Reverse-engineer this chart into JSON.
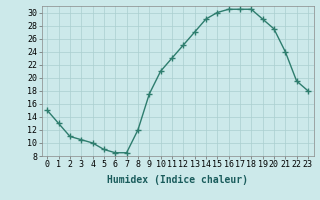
{
  "x": [
    0,
    1,
    2,
    3,
    4,
    5,
    6,
    7,
    8,
    9,
    10,
    11,
    12,
    13,
    14,
    15,
    16,
    17,
    18,
    19,
    20,
    21,
    22,
    23
  ],
  "y": [
    15,
    13,
    11,
    10.5,
    10,
    9,
    8.5,
    8.5,
    12,
    17.5,
    21,
    23,
    25,
    27,
    29,
    30,
    30.5,
    30.5,
    30.5,
    29,
    27.5,
    24,
    19.5,
    18
  ],
  "line_color": "#2e7d6e",
  "marker": "+",
  "marker_size": 4,
  "xlabel": "Humidex (Indice chaleur)",
  "bg_color": "#cce9ea",
  "grid_color": "#aacfcf",
  "xlim": [
    -0.5,
    23.5
  ],
  "ylim": [
    8,
    31
  ],
  "yticks": [
    8,
    10,
    12,
    14,
    16,
    18,
    20,
    22,
    24,
    26,
    28,
    30
  ],
  "xticks": [
    0,
    1,
    2,
    3,
    4,
    5,
    6,
    7,
    8,
    9,
    10,
    11,
    12,
    13,
    14,
    15,
    16,
    17,
    18,
    19,
    20,
    21,
    22,
    23
  ],
  "xtick_labels": [
    "0",
    "1",
    "2",
    "3",
    "4",
    "5",
    "6",
    "7",
    "8",
    "9",
    "10",
    "11",
    "12",
    "13",
    "14",
    "15",
    "16",
    "17",
    "18",
    "19",
    "20",
    "21",
    "22",
    "23"
  ],
  "xlabel_fontsize": 7,
  "tick_fontsize": 6
}
